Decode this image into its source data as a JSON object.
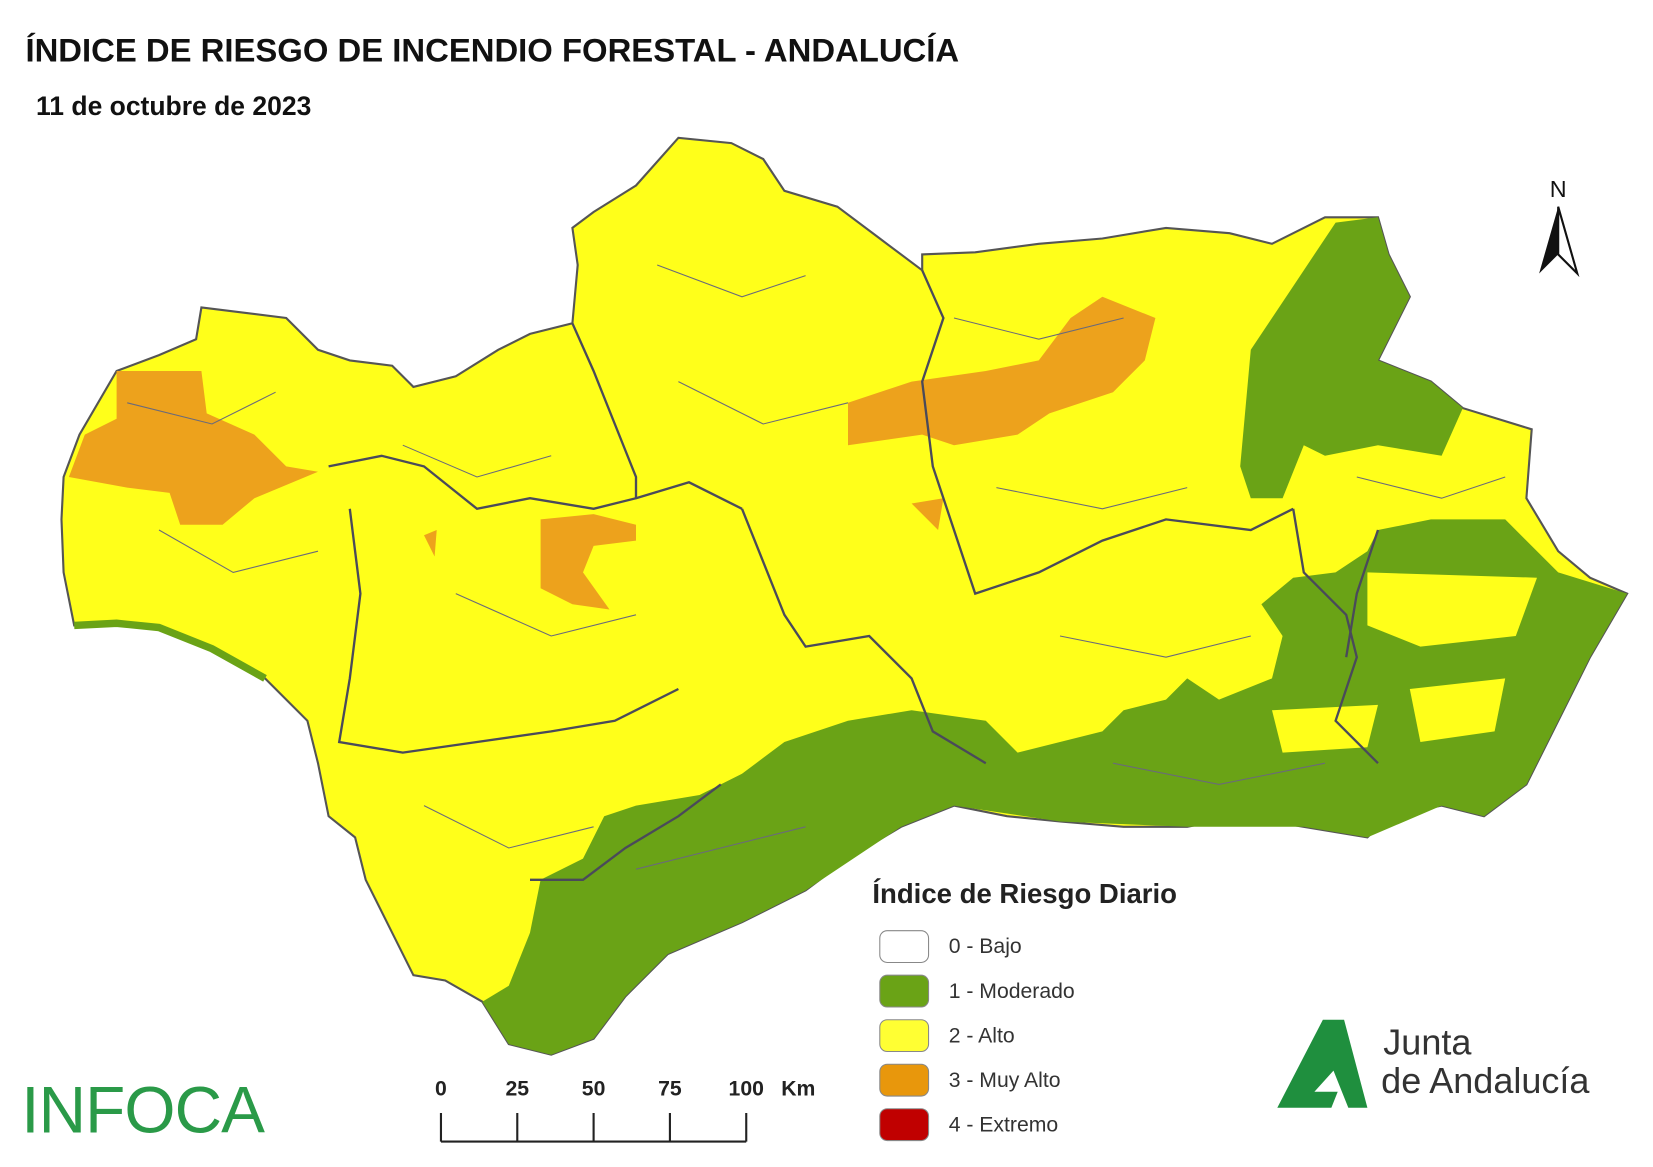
{
  "header": {
    "title": "ÍNDICE DE RIESGO DE INCENDIO FORESTAL - ANDALUCÍA",
    "date": "11 de octubre de 2023"
  },
  "north": "N",
  "legend": {
    "title": "Índice de Riesgo Diario",
    "items": [
      {
        "label": "0 - Bajo",
        "color": "#ffffff"
      },
      {
        "label": "1 - Moderado",
        "color": "#6aa316"
      },
      {
        "label": "2 - Alto",
        "color": "#ffff33"
      },
      {
        "label": "3 - Muy Alto",
        "color": "#e8970c"
      },
      {
        "label": "4 - Extremo",
        "color": "#c00000"
      }
    ]
  },
  "scale_bar": {
    "ticks": [
      0,
      25,
      50,
      75,
      100
    ],
    "unit": "Km"
  },
  "logos": {
    "left": "INFOCA",
    "right_line1": "Junta",
    "right_line2": "de Andalucía"
  }
}
